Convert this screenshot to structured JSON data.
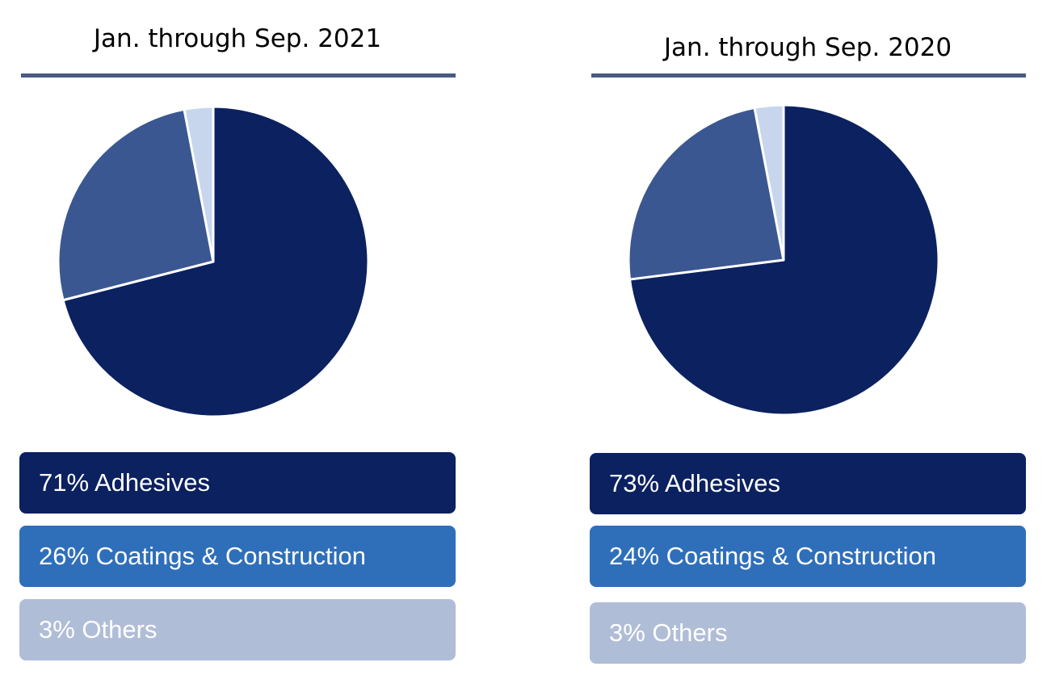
{
  "colors": {
    "title_rule": "#4a5a80",
    "slice_border": "#ffffff"
  },
  "chart_data": [
    {
      "type": "pie",
      "title": "Jan. through Sep. 2021",
      "slices": [
        {
          "label": "Adhesives",
          "value": 71,
          "color": "#0b2160"
        },
        {
          "label": "Coatings & Construction",
          "value": 26,
          "color": "#3b5791"
        },
        {
          "label": "Others",
          "value": 3,
          "color": "#c7d6ec"
        }
      ],
      "legend": [
        {
          "text": "71% Adhesives",
          "color": "#0b2160"
        },
        {
          "text": "26% Coatings & Construction",
          "color": "#2f6fba"
        },
        {
          "text": "3% Others",
          "color": "#b0bdd7"
        }
      ]
    },
    {
      "type": "pie",
      "title": "Jan. through Sep. 2020",
      "slices": [
        {
          "label": "Adhesives",
          "value": 73,
          "color": "#0b2160"
        },
        {
          "label": "Coatings & Construction",
          "value": 24,
          "color": "#3b5791"
        },
        {
          "label": "Others",
          "value": 3,
          "color": "#c7d6ec"
        }
      ],
      "legend": [
        {
          "text": "73% Adhesives",
          "color": "#0b2160"
        },
        {
          "text": "24% Coatings & Construction",
          "color": "#2f6fba"
        },
        {
          "text": "3% Others",
          "color": "#b0bdd7"
        }
      ]
    }
  ]
}
